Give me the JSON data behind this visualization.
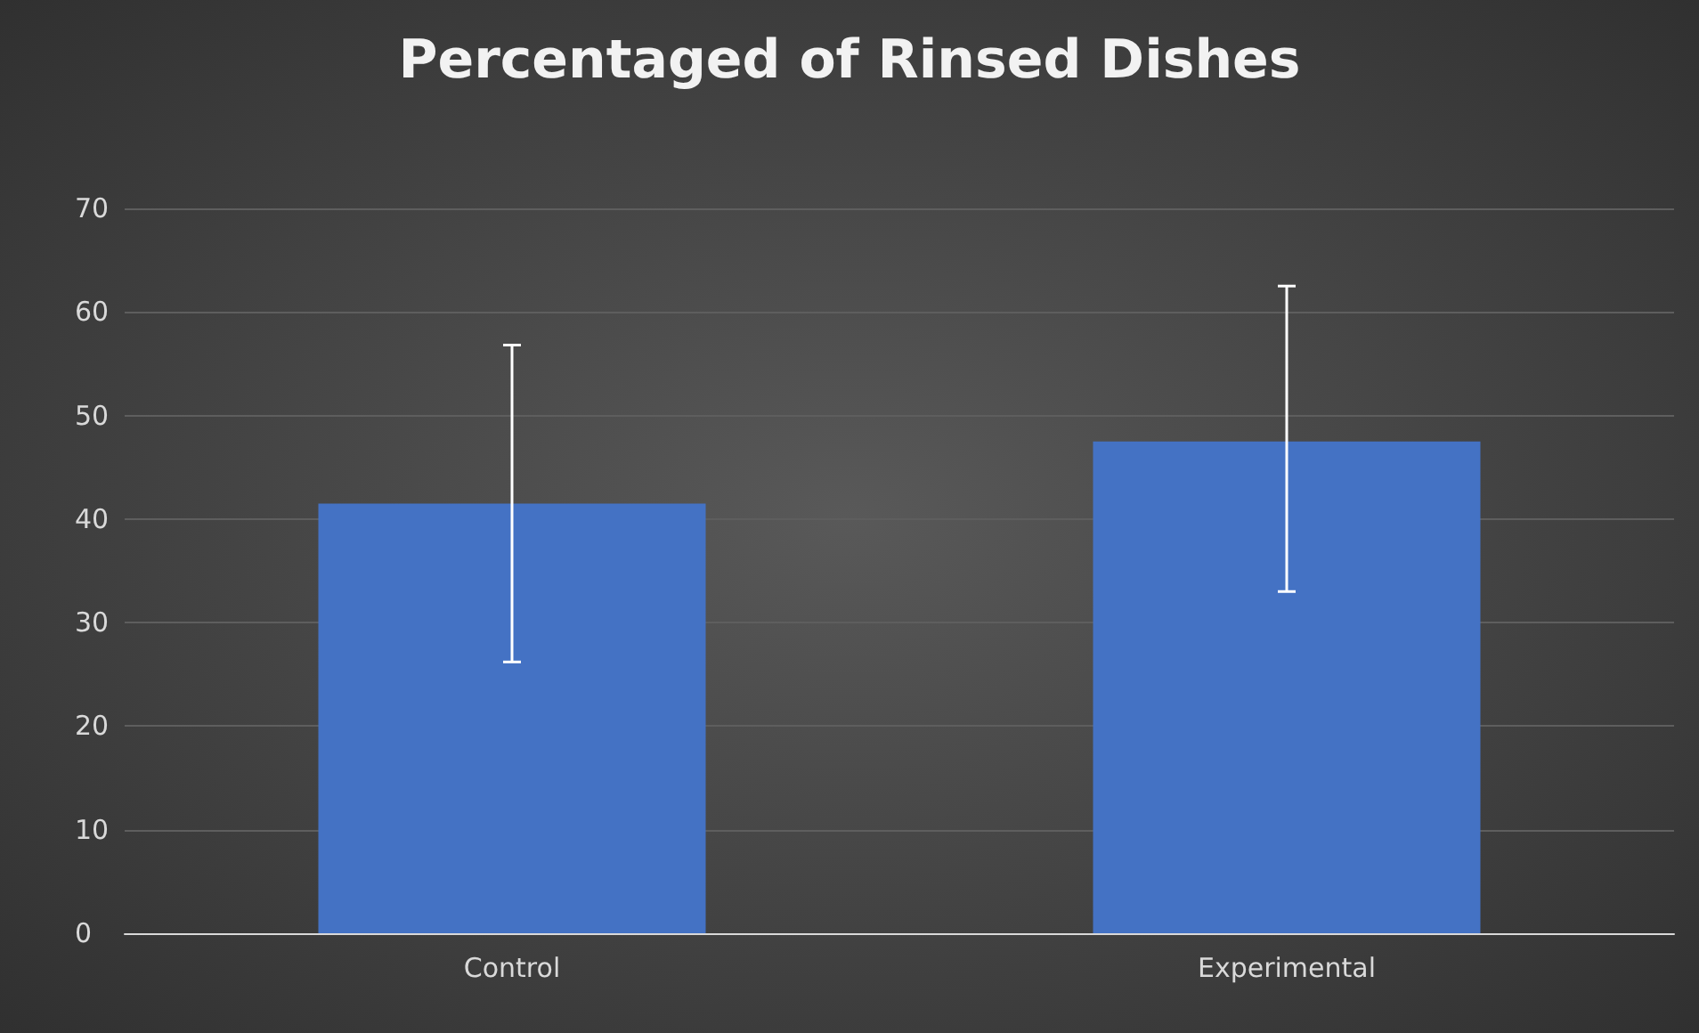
{
  "chart_data": {
    "type": "bar",
    "title": "Percentaged of Rinsed Dishes",
    "categories": [
      "Control",
      "Experimental"
    ],
    "values": [
      41.5,
      47.5
    ],
    "errors": [
      [
        26.2,
        56.8
      ],
      [
        33.0,
        62.5
      ]
    ],
    "color": "#4472c4",
    "ylim": [
      0,
      70
    ],
    "yticks": [
      0,
      10,
      20,
      30,
      40,
      50,
      60,
      70
    ],
    "grid": "y"
  }
}
